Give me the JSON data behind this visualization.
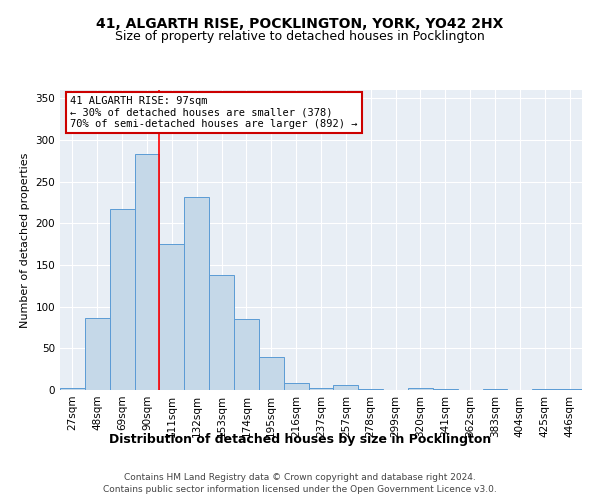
{
  "title": "41, ALGARTH RISE, POCKLINGTON, YORK, YO42 2HX",
  "subtitle": "Size of property relative to detached houses in Pocklington",
  "xlabel": "Distribution of detached houses by size in Pocklington",
  "ylabel": "Number of detached properties",
  "categories": [
    "27sqm",
    "48sqm",
    "69sqm",
    "90sqm",
    "111sqm",
    "132sqm",
    "153sqm",
    "174sqm",
    "195sqm",
    "216sqm",
    "237sqm",
    "257sqm",
    "278sqm",
    "299sqm",
    "320sqm",
    "341sqm",
    "362sqm",
    "383sqm",
    "404sqm",
    "425sqm",
    "446sqm"
  ],
  "values": [
    3,
    86,
    217,
    283,
    175,
    232,
    138,
    85,
    40,
    9,
    3,
    6,
    1,
    0,
    3,
    1,
    0,
    1,
    0,
    1,
    1
  ],
  "bar_color": "#c5d8e8",
  "bar_edge_color": "#5b9bd5",
  "red_line_index": 4,
  "annotation_line1": "41 ALGARTH RISE: 97sqm",
  "annotation_line2": "← 30% of detached houses are smaller (378)",
  "annotation_line3": "70% of semi-detached houses are larger (892) →",
  "annotation_box_color": "#ffffff",
  "annotation_box_edge_color": "#cc0000",
  "ylim": [
    0,
    360
  ],
  "yticks": [
    0,
    50,
    100,
    150,
    200,
    250,
    300,
    350
  ],
  "background_color": "#e8eef5",
  "footer_line1": "Contains HM Land Registry data © Crown copyright and database right 2024.",
  "footer_line2": "Contains public sector information licensed under the Open Government Licence v3.0.",
  "title_fontsize": 10,
  "subtitle_fontsize": 9,
  "xlabel_fontsize": 9,
  "ylabel_fontsize": 8,
  "tick_fontsize": 7.5,
  "annotation_fontsize": 7.5,
  "footer_fontsize": 6.5
}
